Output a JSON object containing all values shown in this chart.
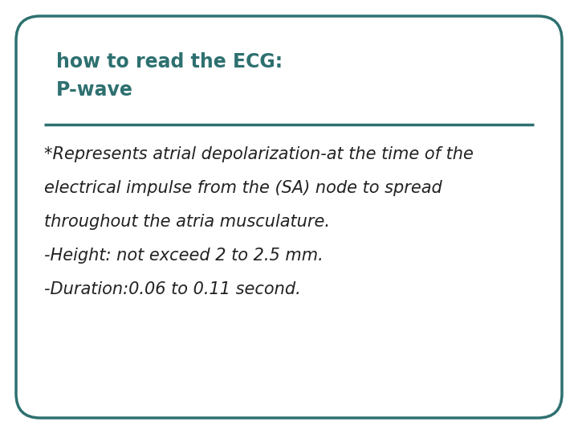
{
  "title_line1": "how to read the ECG:",
  "title_line2": "P-wave",
  "title_color": "#2e7070",
  "body_lines": [
    "*Represents atrial depolarization-at the time of the",
    "electrical impulse from the (SA) node to spread",
    "throughout the atria musculature.",
    "-Height: not exceed 2 to 2.5 mm.",
    "-Duration:0.06 to 0.11 second."
  ],
  "body_color": "#222222",
  "background_color": "#ffffff",
  "border_color": "#2e7070",
  "separator_color": "#2e7070",
  "title_fontsize": 17,
  "body_fontsize": 15,
  "fig_width": 7.2,
  "fig_height": 5.4
}
